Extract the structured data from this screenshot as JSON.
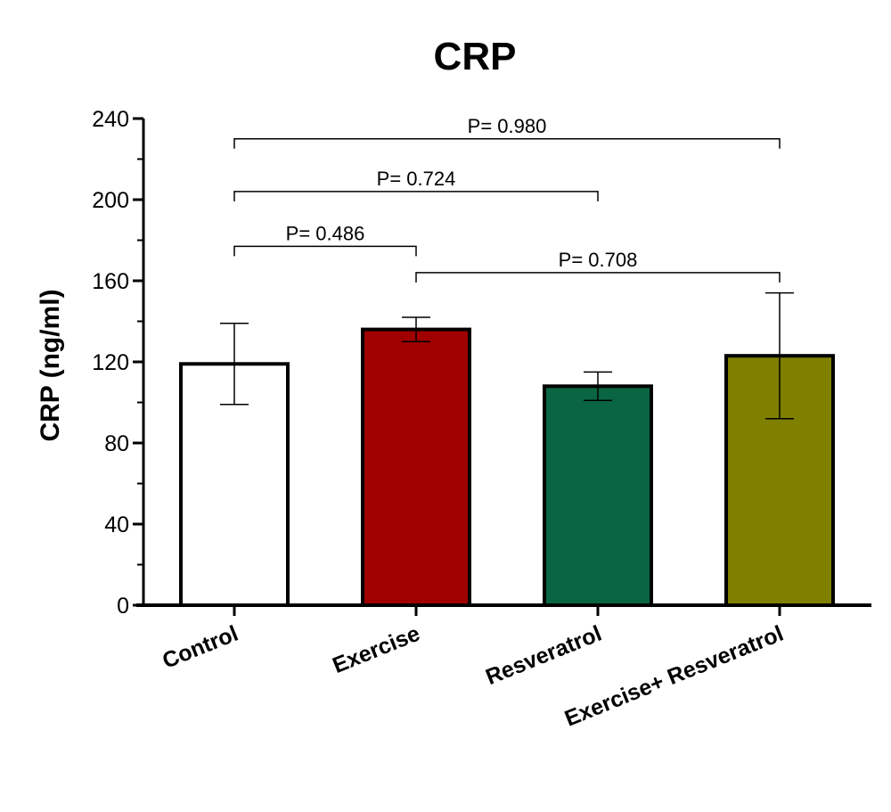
{
  "chart_data": {
    "type": "bar",
    "title": "CRP",
    "xlabel": "",
    "ylabel": "CRP  (ng/ml)",
    "ylim": [
      0,
      240
    ],
    "yticks": [
      0,
      40,
      80,
      120,
      160,
      200,
      240
    ],
    "categories": [
      "Control",
      "Exercise",
      "Resveratrol",
      "Exercise+ Resveratrol"
    ],
    "values": [
      119,
      136,
      108,
      123
    ],
    "error": [
      20,
      6,
      7,
      31
    ],
    "colors": [
      "#ffffff",
      "#a00000",
      "#0a6642",
      "#7f7f00"
    ],
    "comparisons": [
      {
        "from": 0,
        "to": 3,
        "label": "P= 0.980",
        "y": 230
      },
      {
        "from": 0,
        "to": 2,
        "label": "P= 0.724",
        "y": 204
      },
      {
        "from": 0,
        "to": 1,
        "label": "P= 0.486",
        "y": 177
      },
      {
        "from": 1,
        "to": 3,
        "label": "P= 0.708",
        "y": 164
      }
    ],
    "grid": false,
    "legend": "none"
  }
}
